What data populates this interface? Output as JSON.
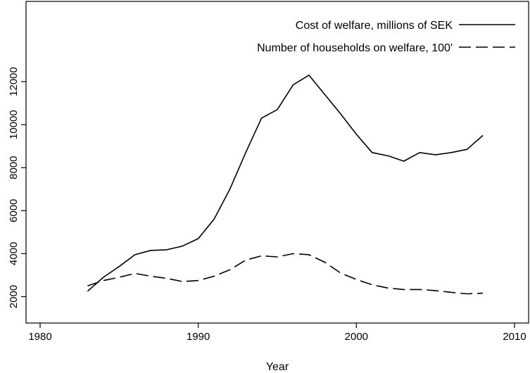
{
  "chart_data": {
    "type": "line",
    "title": "",
    "xlabel": "Year",
    "ylabel": "",
    "xlim": [
      1980,
      2010
    ],
    "ylim": [
      0,
      14000
    ],
    "xticks": [
      1980,
      1990,
      2000,
      2010
    ],
    "yticks": [
      2000,
      4000,
      6000,
      8000,
      10000,
      12000
    ],
    "legend_position": "top-right",
    "grid": false,
    "x": [
      1983,
      1984,
      1985,
      1986,
      1987,
      1988,
      1989,
      1990,
      1991,
      1992,
      1993,
      1994,
      1995,
      1996,
      1997,
      1998,
      1999,
      2000,
      2001,
      2002,
      2003,
      2004,
      2005,
      2006,
      2007,
      2008
    ],
    "series": [
      {
        "name": "Cost of welfare, millions of SEK",
        "dash": "solid",
        "color": "#000000",
        "values": [
          2250,
          2900,
          3400,
          3950,
          4150,
          4180,
          4350,
          4700,
          5600,
          7000,
          8700,
          10300,
          10700,
          11850,
          12300,
          11400,
          10500,
          9550,
          8700,
          8550,
          8300,
          8700,
          8600,
          8700,
          8850,
          9500
        ]
      },
      {
        "name": "Number of households on welfare, 100'",
        "dash": "dashed",
        "color": "#000000",
        "values": [
          2500,
          2750,
          2900,
          3080,
          2950,
          2850,
          2700,
          2750,
          2950,
          3250,
          3700,
          3900,
          3850,
          4000,
          3950,
          3600,
          3100,
          2800,
          2550,
          2400,
          2330,
          2330,
          2280,
          2200,
          2130,
          2160
        ]
      }
    ]
  }
}
